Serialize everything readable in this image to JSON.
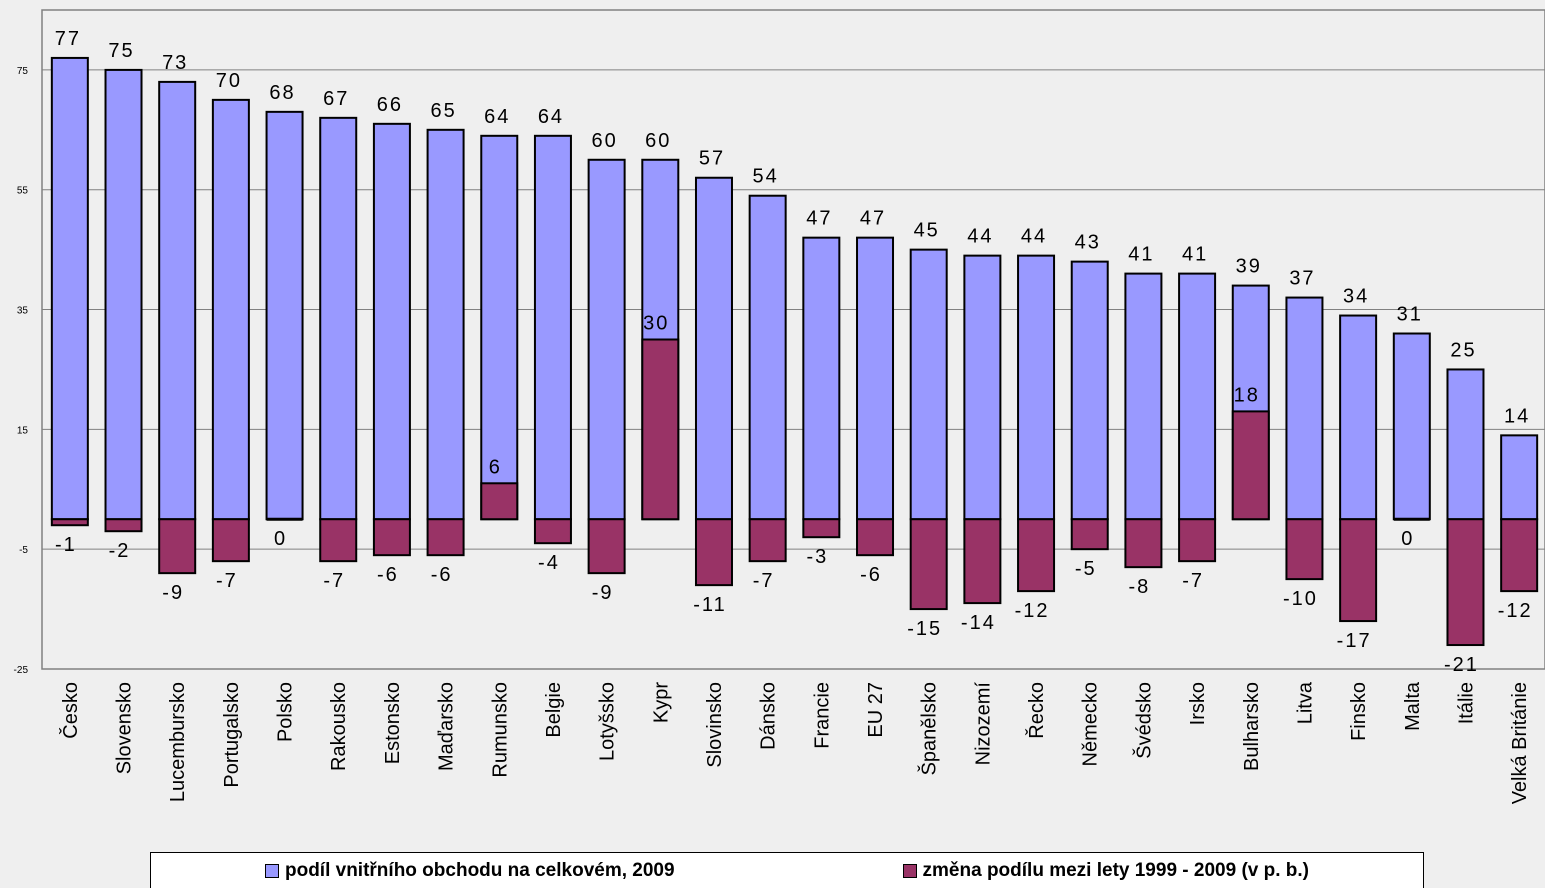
{
  "chart_data": {
    "type": "bar",
    "categories": [
      "Česko",
      "Slovensko",
      "Lucembursko",
      "Portugalsko",
      "Polsko",
      "Rakousko",
      "Estonsko",
      "Maďarsko",
      "Rumunsko",
      "Belgie",
      "Lotyšsko",
      "Kypr",
      "Slovinsko",
      "Dánsko",
      "Francie",
      "EU 27",
      "Španělsko",
      "Nizozemí",
      "Řecko",
      "Německo",
      "Švédsko",
      "Irsko",
      "Bulharsko",
      "Litva",
      "Finsko",
      "Malta",
      "Itálie",
      "Velká Británie"
    ],
    "series": [
      {
        "name": "podíl vnitřního obchodu na celkovém, 2009",
        "color": "#9999ff",
        "values": [
          77,
          75,
          73,
          70,
          68,
          67,
          66,
          65,
          64,
          64,
          60,
          60,
          57,
          54,
          47,
          47,
          45,
          44,
          44,
          43,
          41,
          41,
          39,
          37,
          34,
          31,
          25,
          14
        ]
      },
      {
        "name": "změna podílu mezi lety 1999 - 2009 (v p. b.)",
        "color": "#993366",
        "values": [
          -1,
          -2,
          -9,
          -7,
          0,
          -7,
          -6,
          -6,
          6,
          -4,
          -9,
          30,
          -11,
          -7,
          -3,
          -6,
          -15,
          -14,
          -12,
          -5,
          -8,
          -7,
          18,
          -10,
          -17,
          0,
          -21,
          -12
        ]
      }
    ],
    "series_labels": [
      [
        "77",
        "75",
        "73",
        "70",
        "68",
        "67",
        "66",
        "65",
        "64",
        "64",
        "60",
        "60",
        "57",
        "54",
        "47",
        "47",
        "45",
        "44",
        "44",
        "43",
        "41",
        "41",
        "39",
        "37",
        "34",
        "31",
        "25",
        "14"
      ],
      [
        "-1",
        "-2",
        "-9",
        "-7",
        "0",
        "-7",
        "-6",
        "-6",
        "6",
        "-4",
        "-9",
        "30",
        "-11",
        "-7",
        "-3",
        "-6",
        "-15",
        "-14",
        "-12",
        "-5",
        "-8",
        "-7",
        "18",
        "-10",
        "-17",
        "0",
        "-21",
        "-12"
      ]
    ],
    "yticks": [
      "75",
      "55",
      "35",
      "15",
      "-5",
      "-25"
    ],
    "ylim": [
      -25,
      85
    ],
    "grid": true,
    "legend_position": "bottom"
  }
}
